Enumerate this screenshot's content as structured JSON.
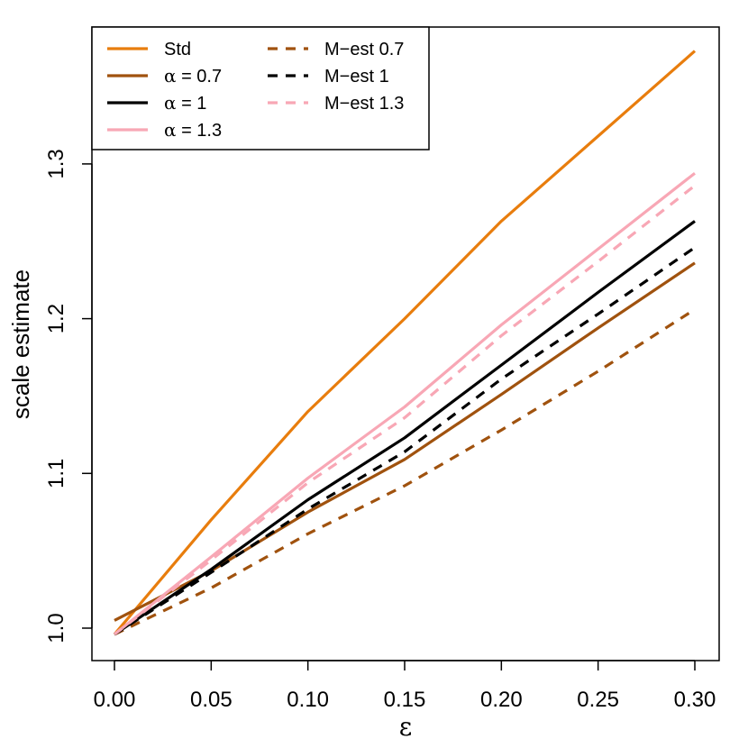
{
  "chart_data": {
    "type": "line",
    "title": "",
    "xlabel": "ε",
    "ylabel": "scale estimate",
    "xlim": [
      0.0,
      0.3
    ],
    "ylim": [
      0.985,
      1.39
    ],
    "x": [
      0.0,
      0.05,
      0.1,
      0.15,
      0.2,
      0.25,
      0.3
    ],
    "x_ticks": [
      0.0,
      0.05,
      0.1,
      0.15,
      0.2,
      0.25,
      0.3
    ],
    "x_tick_labels": [
      "0.00",
      "0.05",
      "0.10",
      "0.15",
      "0.20",
      "0.25",
      "0.30"
    ],
    "y_ticks": [
      1.0,
      1.1,
      1.2,
      1.3
    ],
    "y_tick_labels": [
      "1.0",
      "1.1",
      "1.2",
      "1.3"
    ],
    "grid": false,
    "legend_position": "top-left",
    "series": [
      {
        "name": "Std",
        "label_prefix": "",
        "label_text": "Std",
        "color": "#E87D0D",
        "dash": "solid",
        "values": [
          0.996,
          1.07,
          1.14,
          1.2,
          1.263,
          1.318,
          1.373
        ]
      },
      {
        "name": "α = 0.7",
        "label_prefix": "α",
        "label_text": " = 0.7",
        "color": "#A0520E",
        "dash": "solid",
        "values": [
          1.005,
          1.037,
          1.075,
          1.109,
          1.151,
          1.194,
          1.236
        ]
      },
      {
        "name": "α = 1",
        "label_prefix": "α",
        "label_text": " = 1",
        "color": "#000000",
        "dash": "solid",
        "values": [
          0.996,
          1.038,
          1.083,
          1.123,
          1.17,
          1.217,
          1.263
        ]
      },
      {
        "name": "α = 1.3",
        "label_prefix": "α",
        "label_text": " = 1.3",
        "color": "#F8A7B5",
        "dash": "solid",
        "values": [
          0.996,
          1.046,
          1.097,
          1.143,
          1.196,
          1.245,
          1.294
        ]
      },
      {
        "name": "M−est 0.7",
        "label_prefix": "",
        "label_text": "M−est 0.7",
        "color": "#A0520E",
        "dash": "dashed",
        "values": [
          0.996,
          1.026,
          1.061,
          1.092,
          1.128,
          1.166,
          1.206
        ]
      },
      {
        "name": "M−est 1",
        "label_prefix": "",
        "label_text": "M−est 1",
        "color": "#000000",
        "dash": "dashed",
        "values": [
          0.996,
          1.036,
          1.077,
          1.114,
          1.161,
          1.203,
          1.246
        ]
      },
      {
        "name": "M−est 1.3",
        "label_prefix": "",
        "label_text": "M−est 1.3",
        "color": "#F8A7B5",
        "dash": "dashed",
        "values": [
          0.996,
          1.044,
          1.094,
          1.136,
          1.189,
          1.237,
          1.286
        ]
      }
    ]
  }
}
